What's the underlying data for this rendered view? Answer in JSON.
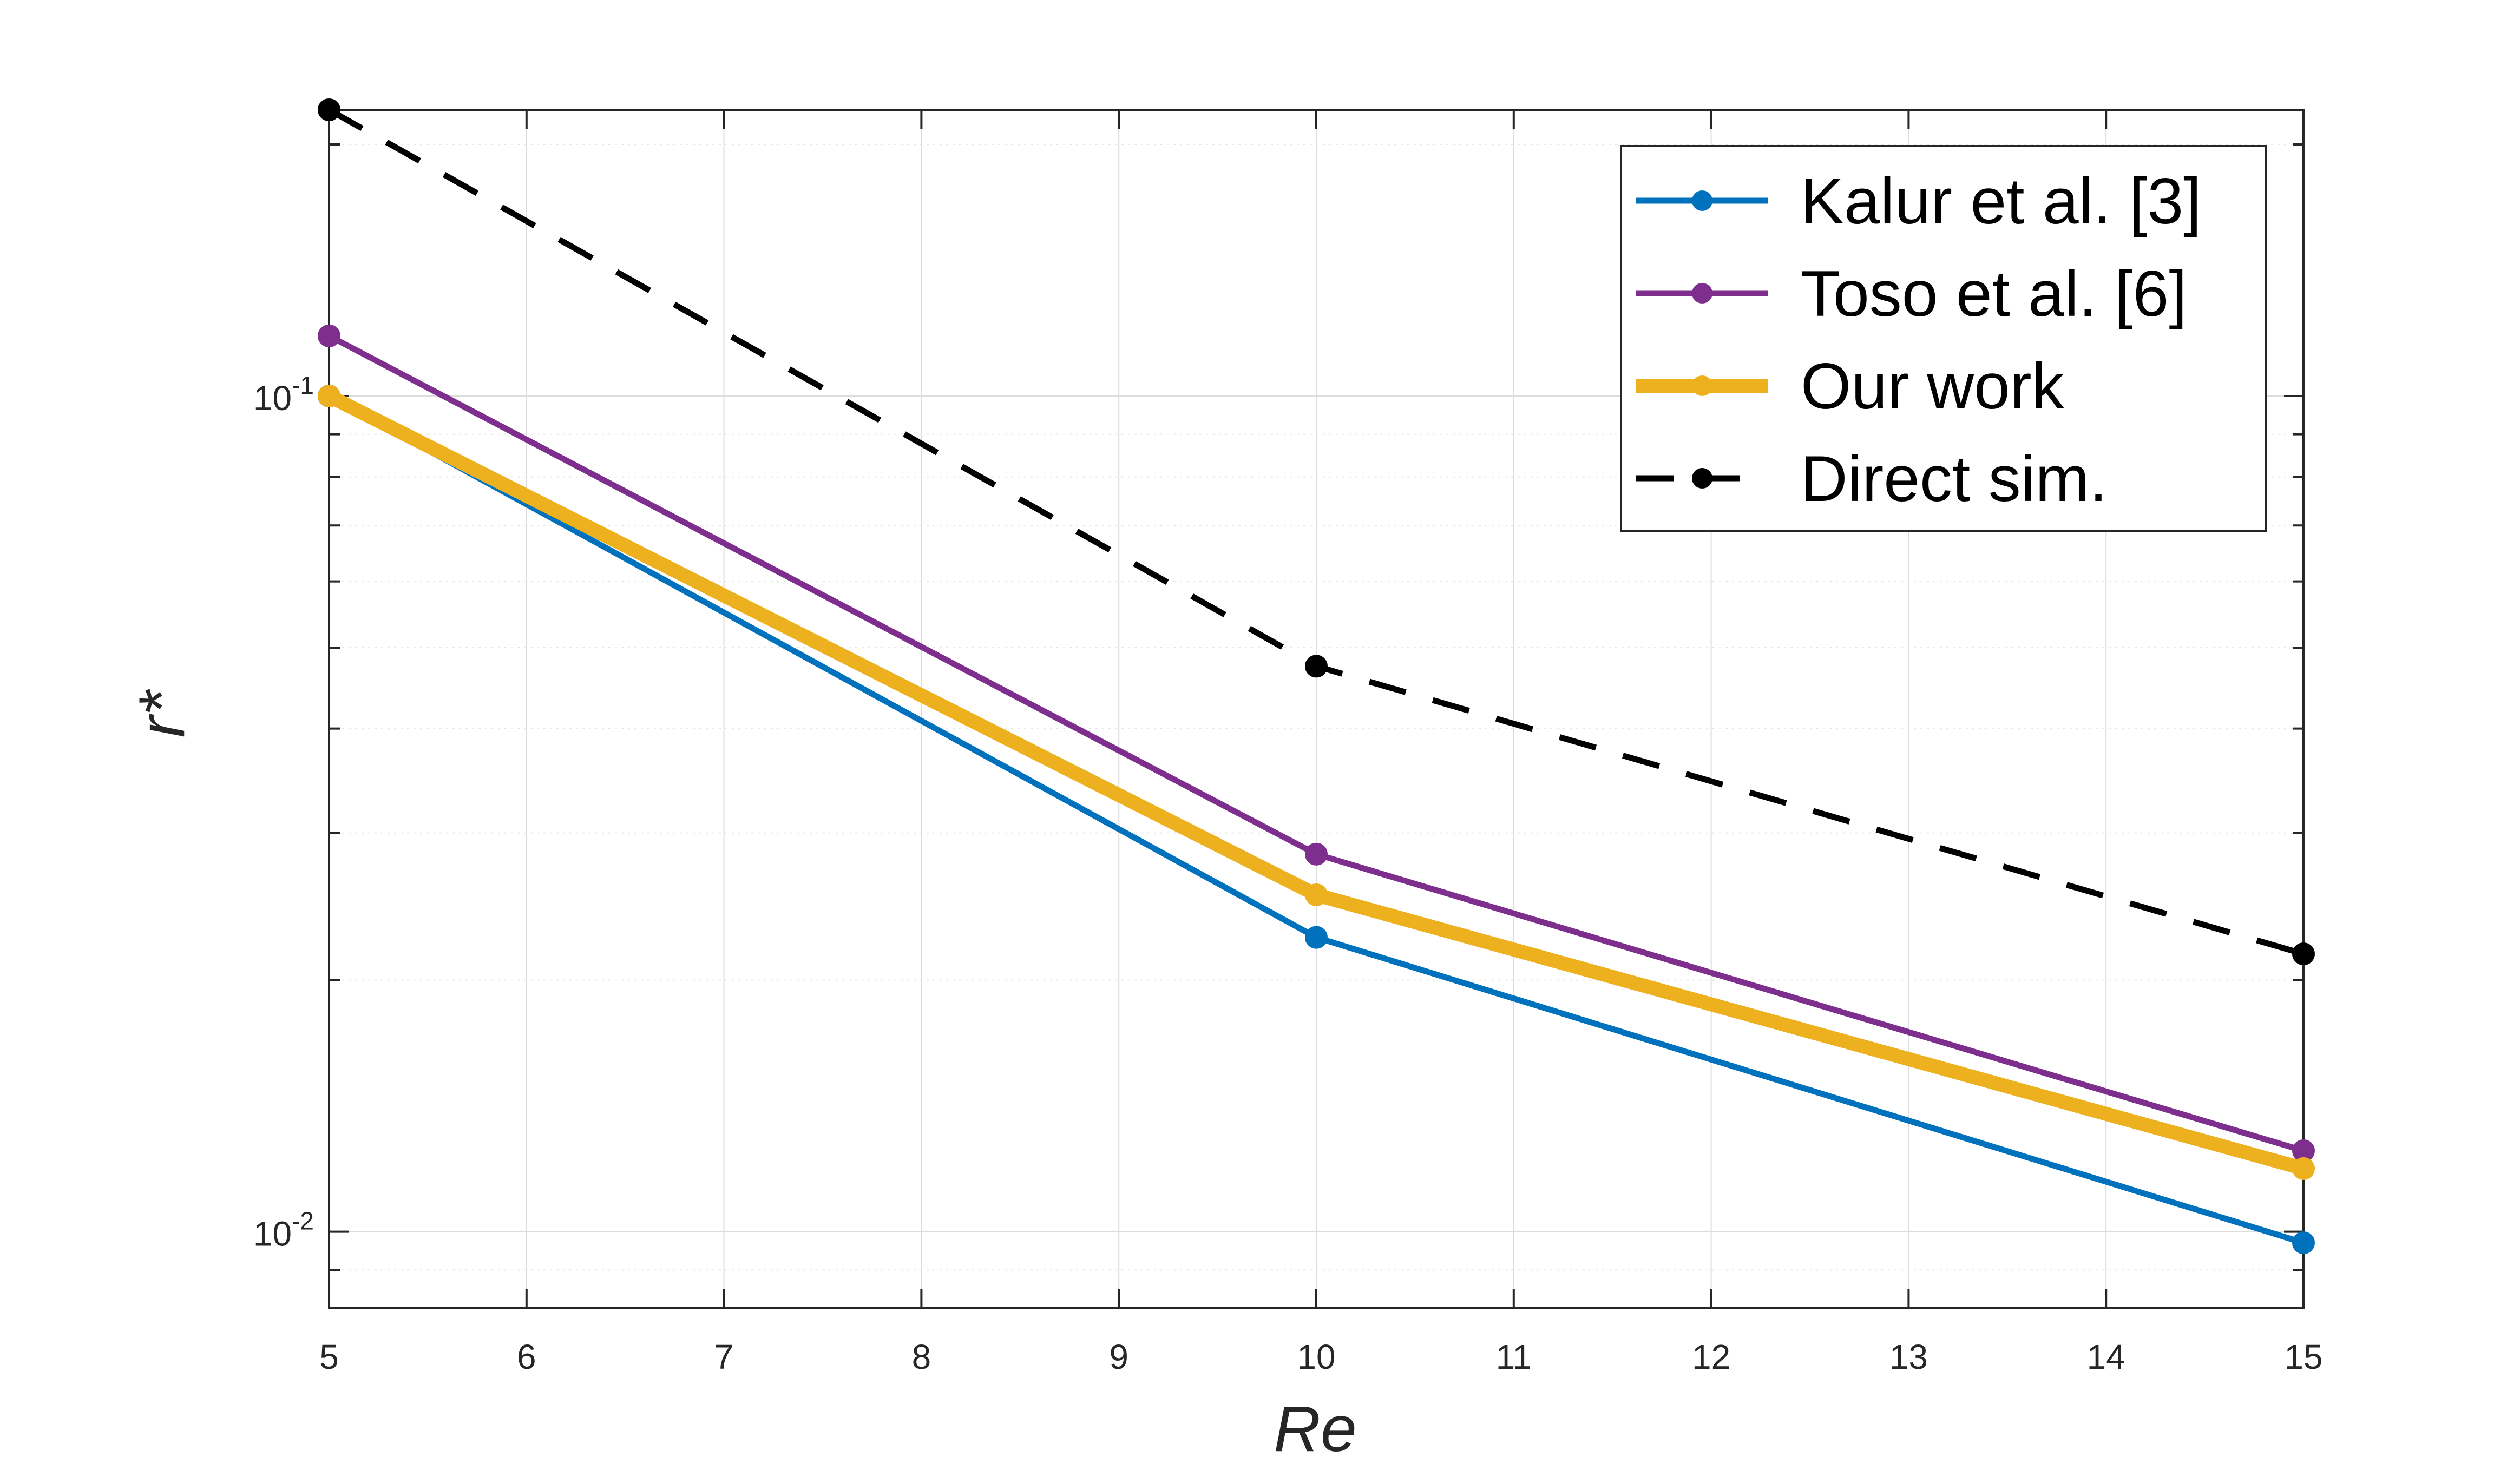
{
  "chart_data": {
    "type": "line",
    "xlabel": "Re",
    "ylabel": "r*",
    "xlim": [
      5,
      15
    ],
    "ylim": [
      0.0081,
      0.22
    ],
    "yscale": "log",
    "grid": true,
    "legend_position": "top-right",
    "x": [
      5,
      10,
      15
    ],
    "x_ticks": [
      5,
      6,
      7,
      8,
      9,
      10,
      11,
      12,
      13,
      14,
      15
    ],
    "y_ticks": [
      {
        "value": 0.1,
        "mantissa": "10",
        "exponent": "-1"
      },
      {
        "value": 0.01,
        "mantissa": "10",
        "exponent": "-2"
      }
    ],
    "series": [
      {
        "name": "Kalur et al. [3]",
        "values": [
          0.1,
          0.0225,
          0.0097
        ],
        "color": "#0072BD",
        "style": "solid",
        "width": "normal"
      },
      {
        "name": "Toso et al. [6]",
        "values": [
          0.118,
          0.0283,
          0.0125
        ],
        "color": "#7E2F8E",
        "style": "solid",
        "width": "normal"
      },
      {
        "name": "Our work",
        "values": [
          0.1,
          0.0253,
          0.0119
        ],
        "color": "#EDB120",
        "style": "solid",
        "width": "thick"
      },
      {
        "name": "Direct sim.",
        "values": [
          0.22,
          0.0475,
          0.0215
        ],
        "color": "#000000",
        "style": "dashed",
        "width": "normal"
      }
    ]
  }
}
